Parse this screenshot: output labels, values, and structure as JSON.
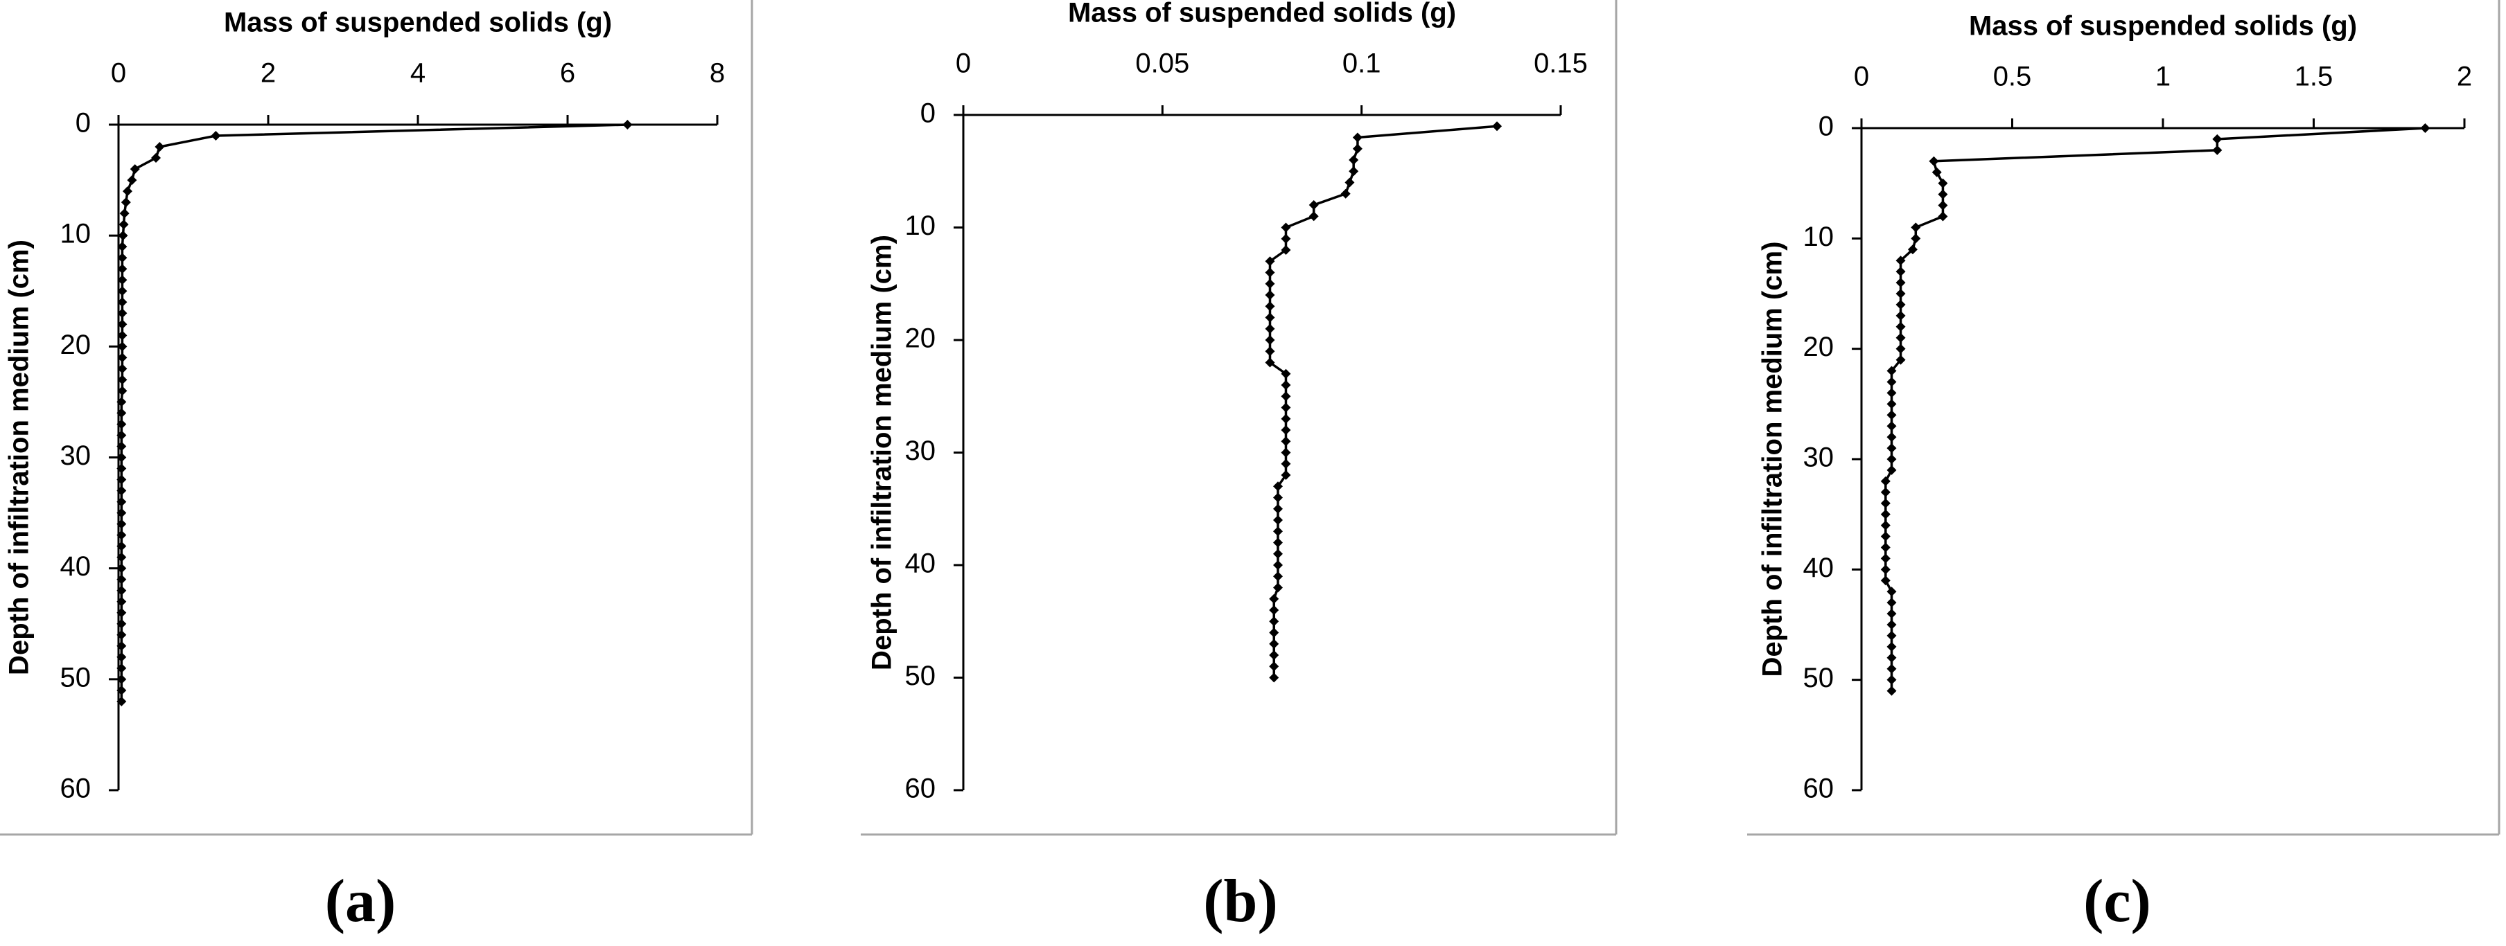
{
  "chart_data": [
    {
      "type": "line",
      "x_label": "Mass of suspended solids  (g)",
      "y_label": "Depth of infiltration  medium (cm)",
      "caption": "(a)",
      "xlim": [
        0,
        8
      ],
      "xticks": [
        0,
        2,
        4,
        6,
        8
      ],
      "ylim": [
        0,
        60
      ],
      "yticks": [
        0,
        10,
        20,
        30,
        40,
        50,
        60
      ],
      "series": [
        {
          "color": "#000000",
          "depth": [
            0,
            1,
            2,
            3,
            4,
            5,
            6,
            7,
            8,
            9,
            10,
            11,
            12,
            13,
            14,
            15,
            16,
            17,
            18,
            19,
            20,
            21,
            22,
            23,
            24,
            25,
            26,
            27,
            28,
            29,
            30,
            31,
            32,
            33,
            34,
            35,
            36,
            37,
            38,
            39,
            40,
            41,
            42,
            43,
            44,
            45,
            46,
            47,
            48,
            49,
            50,
            51,
            52
          ],
          "values": [
            6.8,
            1.3,
            0.55,
            0.5,
            0.22,
            0.18,
            0.12,
            0.1,
            0.08,
            0.07,
            0.06,
            0.05,
            0.05,
            0.05,
            0.05,
            0.05,
            0.05,
            0.05,
            0.05,
            0.05,
            0.05,
            0.05,
            0.05,
            0.05,
            0.05,
            0.04,
            0.04,
            0.04,
            0.04,
            0.04,
            0.04,
            0.04,
            0.04,
            0.04,
            0.04,
            0.04,
            0.04,
            0.04,
            0.04,
            0.04,
            0.04,
            0.04,
            0.04,
            0.04,
            0.04,
            0.04,
            0.04,
            0.04,
            0.04,
            0.04,
            0.04,
            0.04,
            0.04
          ]
        }
      ]
    },
    {
      "type": "line",
      "x_label": "Mass of suspended solids  (g)",
      "y_label": "Depth of infiltration  medium (cm)",
      "caption": "(b)",
      "xlim": [
        0,
        0.15
      ],
      "xticks": [
        0,
        0.05,
        0.1,
        0.15
      ],
      "ylim": [
        0,
        60
      ],
      "yticks": [
        0,
        10,
        20,
        30,
        40,
        50,
        60
      ],
      "series": [
        {
          "color": "#000000",
          "depth": [
            1,
            2,
            3,
            4,
            5,
            6,
            7,
            8,
            9,
            10,
            11,
            12,
            13,
            14,
            15,
            16,
            17,
            18,
            19,
            20,
            21,
            22,
            23,
            24,
            25,
            26,
            27,
            28,
            29,
            30,
            31,
            32,
            33,
            34,
            35,
            36,
            37,
            38,
            39,
            40,
            41,
            42,
            43,
            44,
            45,
            46,
            47,
            48,
            49,
            50
          ],
          "values": [
            0.134,
            0.099,
            0.099,
            0.098,
            0.098,
            0.097,
            0.096,
            0.088,
            0.088,
            0.081,
            0.081,
            0.081,
            0.077,
            0.077,
            0.077,
            0.077,
            0.077,
            0.077,
            0.077,
            0.077,
            0.077,
            0.077,
            0.081,
            0.081,
            0.081,
            0.081,
            0.081,
            0.081,
            0.081,
            0.081,
            0.081,
            0.081,
            0.079,
            0.079,
            0.079,
            0.079,
            0.079,
            0.079,
            0.079,
            0.079,
            0.079,
            0.079,
            0.078,
            0.078,
            0.078,
            0.078,
            0.078,
            0.078,
            0.078,
            0.078
          ]
        }
      ]
    },
    {
      "type": "line",
      "x_label": "Mass of suspended solids  (g)",
      "y_label": "Depth of infiltration  medium (cm)",
      "caption": "(c)",
      "xlim": [
        0,
        2
      ],
      "xticks": [
        0,
        0.5,
        1,
        1.5,
        2
      ],
      "ylim": [
        0,
        60
      ],
      "yticks": [
        0,
        10,
        20,
        30,
        40,
        50,
        60
      ],
      "series": [
        {
          "color": "#000000",
          "depth": [
            0,
            1,
            2,
            3,
            4,
            5,
            6,
            7,
            8,
            9,
            10,
            11,
            12,
            13,
            14,
            15,
            16,
            17,
            18,
            19,
            20,
            21,
            22,
            23,
            24,
            25,
            26,
            27,
            28,
            29,
            30,
            31,
            32,
            33,
            34,
            35,
            36,
            37,
            38,
            39,
            40,
            41,
            42,
            43,
            44,
            45,
            46,
            47,
            48,
            49,
            50,
            51
          ],
          "values": [
            1.87,
            1.18,
            1.18,
            0.24,
            0.25,
            0.27,
            0.27,
            0.27,
            0.27,
            0.18,
            0.18,
            0.17,
            0.13,
            0.13,
            0.13,
            0.13,
            0.13,
            0.13,
            0.13,
            0.13,
            0.13,
            0.13,
            0.1,
            0.1,
            0.1,
            0.1,
            0.1,
            0.1,
            0.1,
            0.1,
            0.1,
            0.1,
            0.08,
            0.08,
            0.08,
            0.08,
            0.08,
            0.08,
            0.08,
            0.08,
            0.08,
            0.08,
            0.1,
            0.1,
            0.1,
            0.1,
            0.1,
            0.1,
            0.1,
            0.1,
            0.1,
            0.1
          ]
        }
      ]
    }
  ]
}
